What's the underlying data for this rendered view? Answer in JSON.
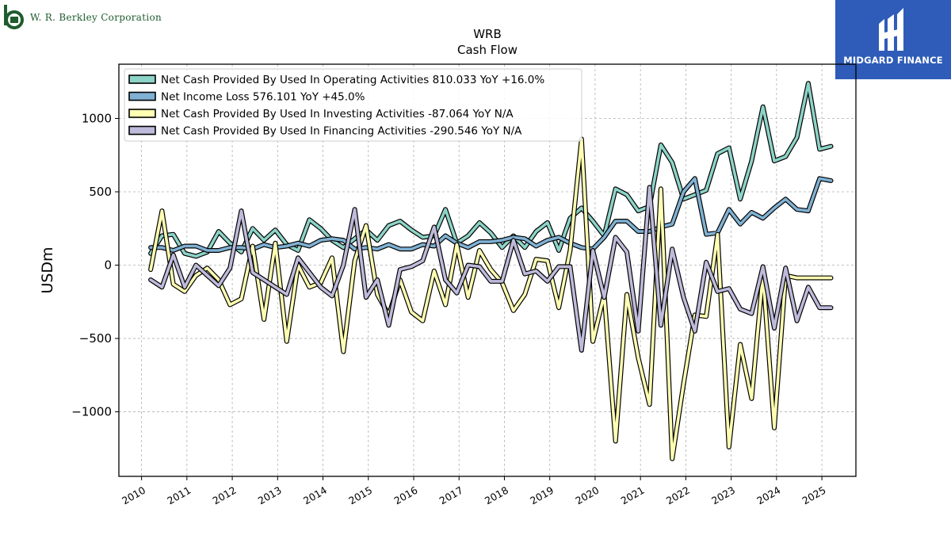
{
  "header": {
    "left_logo_text": "W. R. Berkley Corporation",
    "right_logo_text": "MIDGARD FINANCE"
  },
  "chart_data": {
    "type": "line",
    "title": "WRB",
    "subtitle": "Cash Flow",
    "xlabel": "",
    "ylabel": "USDm",
    "xlim": [
      2009.5,
      2025.75
    ],
    "ylim": [
      -1440,
      1370
    ],
    "yticks": [
      -1000,
      -500,
      0,
      500,
      1000
    ],
    "xticks": [
      2010,
      2011,
      2012,
      2013,
      2014,
      2015,
      2016,
      2017,
      2018,
      2019,
      2020,
      2021,
      2022,
      2023,
      2024,
      2025
    ],
    "grid": true,
    "legend_position": "top-left",
    "x": [
      2010.2,
      2010.45,
      2010.7,
      2010.95,
      2011.2,
      2011.45,
      2011.7,
      2011.95,
      2012.2,
      2012.45,
      2012.7,
      2012.95,
      2013.2,
      2013.45,
      2013.7,
      2013.95,
      2014.2,
      2014.45,
      2014.7,
      2014.95,
      2015.2,
      2015.45,
      2015.7,
      2015.95,
      2016.2,
      2016.45,
      2016.7,
      2016.95,
      2017.2,
      2017.45,
      2017.7,
      2017.95,
      2018.2,
      2018.45,
      2018.7,
      2018.95,
      2019.2,
      2019.45,
      2019.7,
      2019.95,
      2020.2,
      2020.45,
      2020.7,
      2020.95,
      2021.2,
      2021.45,
      2021.7,
      2021.95,
      2022.2,
      2022.45,
      2022.7,
      2022.95,
      2023.2,
      2023.45,
      2023.7,
      2023.95,
      2024.2,
      2024.45,
      2024.7,
      2024.95,
      2025.2
    ],
    "series": [
      {
        "name": "Net Cash Provided By Used In Operating Activities",
        "legend_label": "Net Cash Provided By Used In Operating Activities  810.033 YoY +16.0%",
        "color": "#8dd3c7",
        "values": [
          80,
          200,
          210,
          80,
          60,
          90,
          230,
          150,
          90,
          250,
          170,
          240,
          140,
          100,
          310,
          250,
          170,
          120,
          180,
          240,
          170,
          270,
          300,
          240,
          190,
          200,
          380,
          150,
          200,
          290,
          220,
          120,
          200,
          120,
          230,
          290,
          100,
          320,
          390,
          300,
          200,
          520,
          480,
          370,
          400,
          820,
          700,
          450,
          480,
          510,
          760,
          800,
          450,
          710,
          1080,
          710,
          740,
          870,
          1240,
          790,
          810
        ]
      },
      {
        "name": "Net Income Loss",
        "legend_label": "Net Income Loss  576.101 YoY +45.0%",
        "color": "#80b1d3",
        "values": [
          120,
          120,
          100,
          130,
          130,
          100,
          100,
          120,
          120,
          110,
          140,
          120,
          130,
          150,
          130,
          170,
          180,
          170,
          110,
          120,
          110,
          140,
          110,
          110,
          140,
          130,
          200,
          150,
          120,
          160,
          160,
          170,
          190,
          180,
          130,
          170,
          190,
          150,
          120,
          110,
          190,
          300,
          300,
          230,
          230,
          260,
          280,
          500,
          590,
          210,
          220,
          380,
          280,
          360,
          320,
          390,
          450,
          380,
          370,
          590,
          576
        ]
      },
      {
        "name": "Net Cash Provided By Used In Investing Activities",
        "legend_label": "Net Cash Provided By Used In Investing Activities  -87.064 YoY N/A",
        "color": "#ffffb3",
        "values": [
          -30,
          370,
          -130,
          -180,
          -70,
          -20,
          -100,
          -270,
          -230,
          130,
          -370,
          150,
          -520,
          0,
          -150,
          -120,
          50,
          -590,
          30,
          270,
          -200,
          -340,
          -100,
          -320,
          -380,
          -40,
          -270,
          140,
          -220,
          100,
          -30,
          -120,
          -310,
          -200,
          40,
          30,
          -290,
          100,
          860,
          -520,
          -200,
          -1200,
          -200,
          -630,
          -950,
          520,
          -1320,
          -810,
          -340,
          -350,
          210,
          -1240,
          -540,
          -910,
          -60,
          -1110,
          -70,
          -87,
          -87,
          -87,
          -87
        ]
      },
      {
        "name": "Net Cash Provided By Used In Financing Activities",
        "legend_label": "Net Cash Provided By Used In Financing Activities  -290.546 YoY N/A",
        "color": "#bebada",
        "values": [
          -100,
          -150,
          70,
          -150,
          0,
          -70,
          -140,
          -20,
          370,
          -50,
          -100,
          -150,
          -200,
          50,
          -50,
          -150,
          -210,
          0,
          380,
          -220,
          -100,
          -410,
          -30,
          -10,
          30,
          260,
          -100,
          -190,
          0,
          -10,
          -110,
          -110,
          170,
          -60,
          -40,
          -110,
          -10,
          -10,
          -580,
          100,
          -220,
          190,
          90,
          -450,
          530,
          -410,
          110,
          -220,
          -450,
          20,
          -180,
          -160,
          -300,
          -330,
          -10,
          -430,
          -20,
          -380,
          -150,
          -290,
          -290
        ]
      }
    ]
  }
}
